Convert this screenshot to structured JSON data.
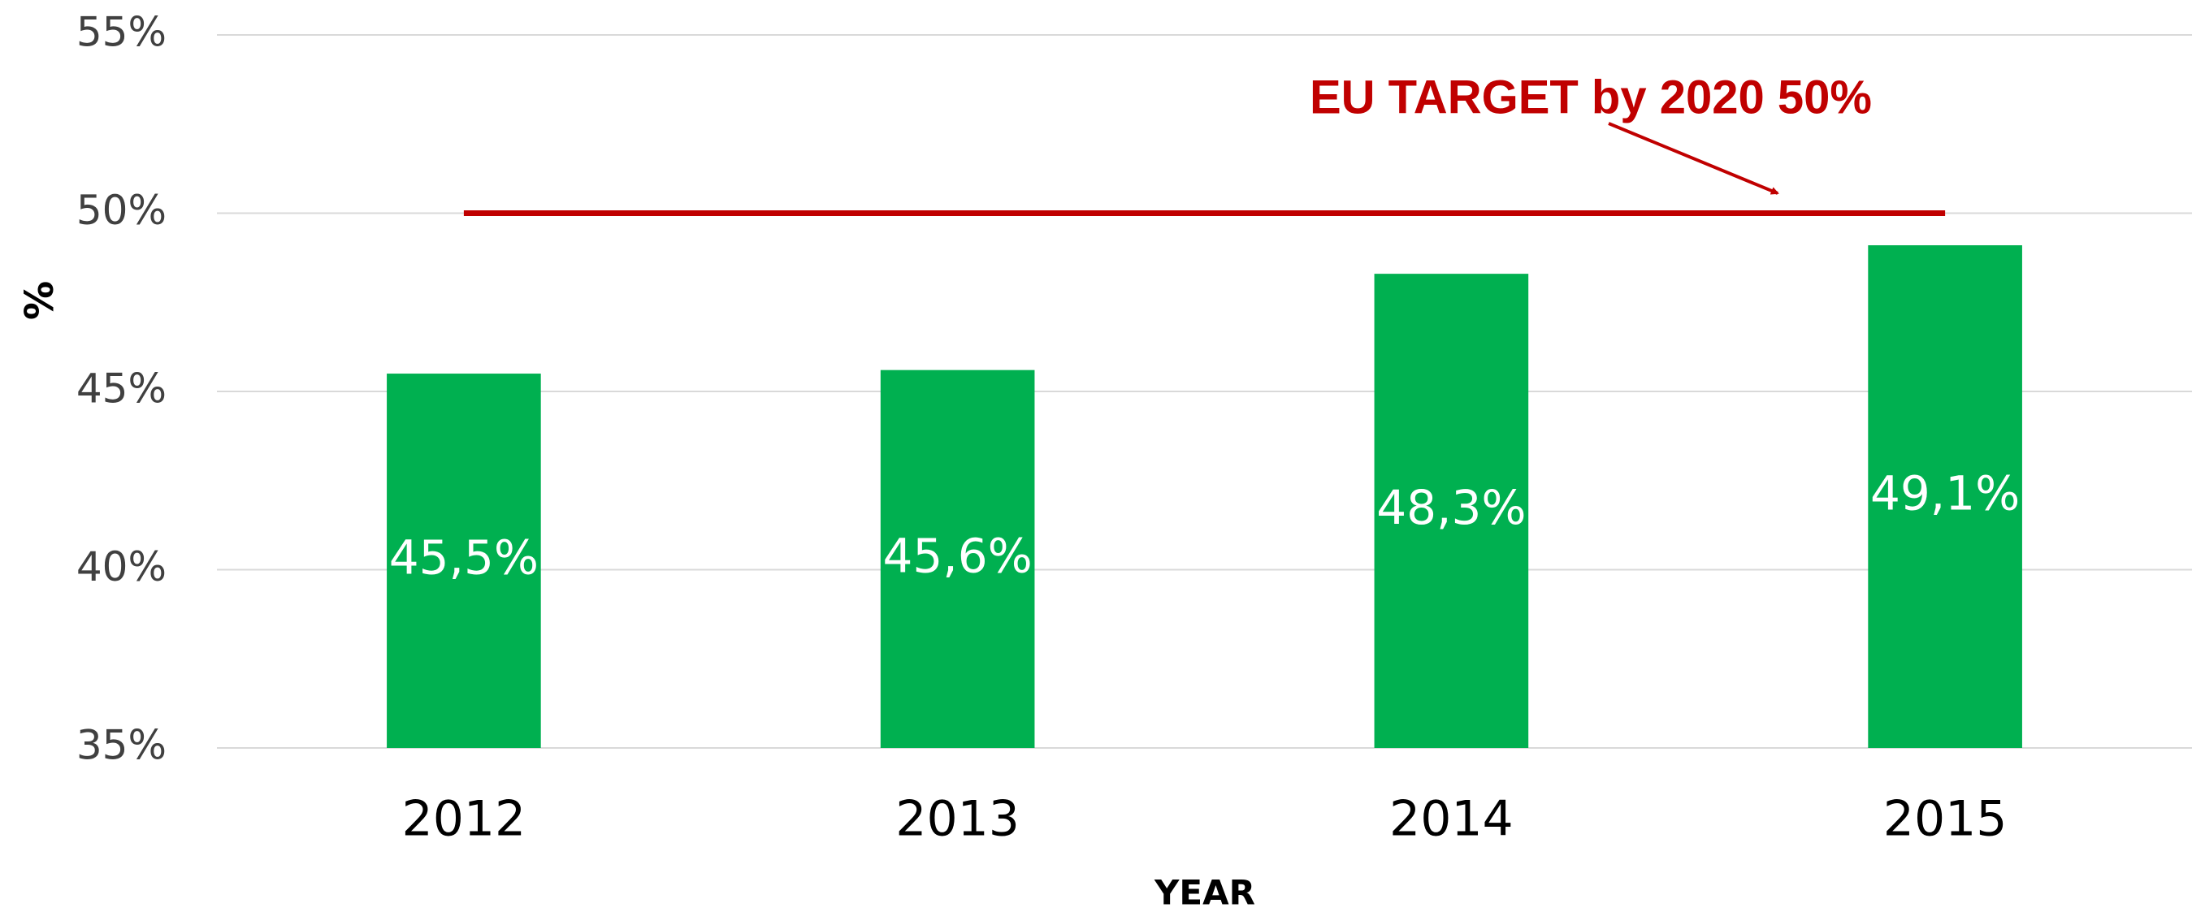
{
  "chart_data": {
    "type": "bar",
    "categories": [
      "2012",
      "2013",
      "2014",
      "2015"
    ],
    "values": [
      45.5,
      45.6,
      48.3,
      49.1
    ],
    "value_labels": [
      "45,5%",
      "45,6%",
      "48,3%",
      "49,1%"
    ],
    "color": "#00b050",
    "ylim": [
      35,
      55
    ],
    "yticks": [
      {
        "value": 35,
        "label": "35%"
      },
      {
        "value": 40,
        "label": "40%"
      },
      {
        "value": 45,
        "label": "45%"
      },
      {
        "value": 50,
        "label": "50%"
      },
      {
        "value": 55,
        "label": "55%"
      }
    ],
    "grid": true,
    "y_label": "%",
    "x_label": "YEAR",
    "target_line": {
      "value": 50,
      "label": "EU TARGET by 2020  50%",
      "color": "#c00000"
    }
  }
}
